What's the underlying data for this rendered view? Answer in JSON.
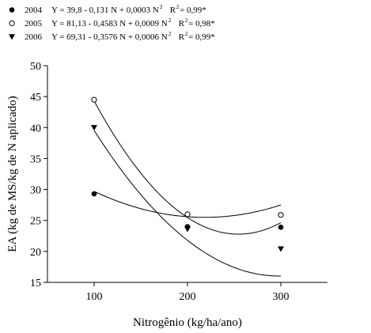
{
  "chart_data": {
    "type": "scatter",
    "title": "",
    "xlabel": "Nitrogênio (kg/ha/ano)",
    "ylabel": "EA (kg de MS/kg de N aplicado)",
    "xlim": [
      50,
      350
    ],
    "ylim": [
      15,
      50
    ],
    "xticks": [
      "100",
      "200",
      "300"
    ],
    "yticks": [
      "15",
      "20",
      "25",
      "30",
      "35",
      "40",
      "45",
      "50"
    ],
    "grid": false,
    "legend_position": "top-left",
    "series": [
      {
        "name": "2004",
        "marker": "filled-circle",
        "equation": "Y = 39,8 - 0,131 N + 0,0003 N",
        "r2": "R",
        "r2_value": " = 0,99*",
        "exponent": "2",
        "fit": [
          39.8,
          -0.131,
          0.0003
        ],
        "x": [
          100,
          200,
          300
        ],
        "y": [
          29.3,
          24.0,
          23.9
        ]
      },
      {
        "name": "2005",
        "marker": "open-circle",
        "equation": "Y = 81,13 - 0,4583 N + 0,0009 N",
        "r2": "R",
        "r2_value": " = 0,98*",
        "exponent": "2",
        "fit": [
          81.13,
          -0.4583,
          0.0009
        ],
        "x": [
          100,
          200,
          300
        ],
        "y": [
          44.5,
          26.0,
          25.9
        ]
      },
      {
        "name": "2006",
        "marker": "filled-triangle-down",
        "equation": "Y = 69,31 - 0,3576 N + 0,0006 N",
        "r2": "R",
        "r2_value": " = 0,99*",
        "exponent": "2",
        "fit": [
          69.31,
          -0.3576,
          0.0006
        ],
        "x": [
          100,
          200,
          300
        ],
        "y": [
          40.0,
          23.6,
          20.4
        ]
      }
    ]
  }
}
